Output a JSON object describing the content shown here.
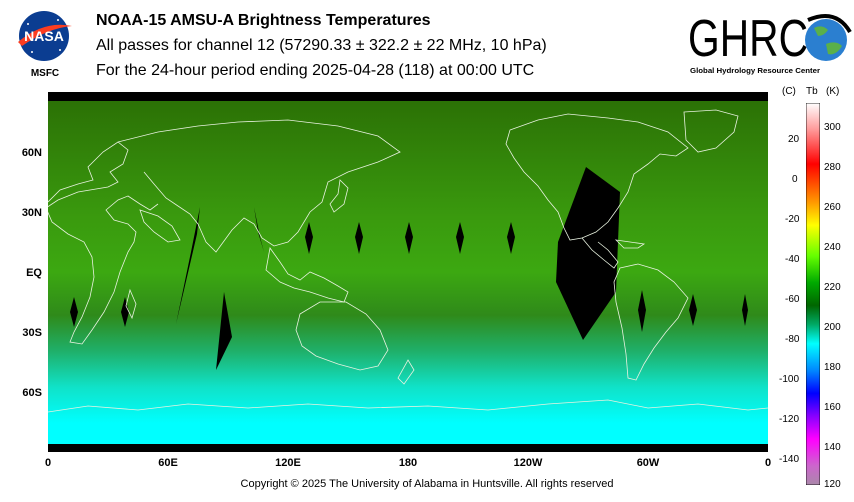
{
  "header": {
    "title": "NOAA-15 AMSU-A Brightness Temperatures",
    "subtitle": "All passes for channel 12 (57290.33 ± 322.2 ± 22 MHz, 10 hPa)",
    "period": "For the 24-hour period ending 2025-04-28 (118) at 00:00 UTC"
  },
  "logos": {
    "nasa_text": "NASA",
    "msfc_text": "MSFC",
    "ghrc_text": "GHRC",
    "ghrc_subtext": "Global Hydrology Resource Center"
  },
  "map": {
    "lat_labels": [
      "60N",
      "30N",
      "EQ",
      "30S",
      "60S"
    ],
    "lon_labels": [
      "0",
      "60E",
      "120E",
      "180",
      "120W",
      "60W",
      "0"
    ],
    "colors": {
      "warm": "#2d7a06",
      "mid": "#3ca811",
      "cold": "#00ffff",
      "swath_gap": "#000000"
    }
  },
  "colorbar": {
    "unit_c": "(C)",
    "unit_tb": "Tb",
    "unit_k": "(K)",
    "celsius_ticks": [
      "20",
      "0",
      "-20",
      "-40",
      "-60",
      "-80",
      "-100",
      "-120",
      "-140"
    ],
    "kelvin_ticks": [
      "300",
      "280",
      "260",
      "240",
      "220",
      "200",
      "180",
      "160",
      "140",
      "120"
    ],
    "colors": [
      "#ffffff",
      "#ff0000",
      "#ffff00",
      "#00ff00",
      "#007700",
      "#00ffff",
      "#0000ff",
      "#ff00ff",
      "#aa44aa"
    ]
  },
  "footer": {
    "copyright": "Copyright © 2025 The University of Alabama in Huntsville.  All rights reserved"
  }
}
